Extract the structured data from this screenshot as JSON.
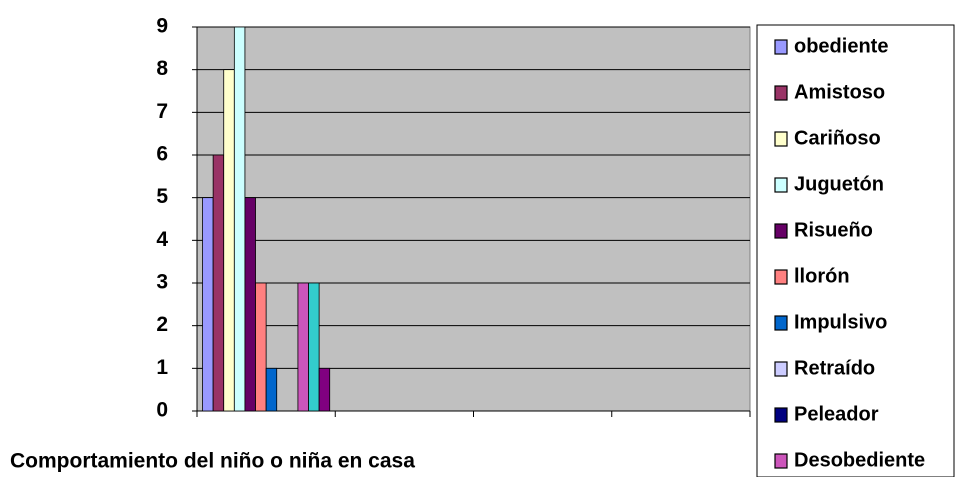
{
  "chart_data": {
    "type": "bar",
    "title": "Comportamiento del niño o niña en casa",
    "categories": [
      null,
      null,
      null,
      null
    ],
    "series": [
      {
        "name": "obediente",
        "color": "#9999ff",
        "values": [
          5,
          0,
          0,
          0
        ]
      },
      {
        "name": "Amistoso",
        "color": "#993366",
        "values": [
          6,
          0,
          0,
          0
        ]
      },
      {
        "name": "Cariñoso",
        "color": "#ffffcc",
        "values": [
          8,
          0,
          0,
          0
        ]
      },
      {
        "name": "Juguetón",
        "color": "#ccffff",
        "values": [
          9,
          0,
          0,
          0
        ]
      },
      {
        "name": "Risueño",
        "color": "#660066",
        "values": [
          5,
          0,
          0,
          0
        ]
      },
      {
        "name": "llorón",
        "color": "#ff8080",
        "values": [
          3,
          0,
          0,
          0
        ]
      },
      {
        "name": "Impulsivo",
        "color": "#0066cc",
        "values": [
          1,
          0,
          0,
          0
        ]
      },
      {
        "name": "Retraído",
        "color": "#ccccff",
        "values": [
          0,
          0,
          0,
          0
        ]
      },
      {
        "name": "Peleador",
        "color": "#000080",
        "values": [
          0,
          0,
          0,
          0
        ]
      },
      {
        "name": "Desobediente",
        "color": "#cc55bb",
        "values": [
          3,
          0,
          0,
          0
        ]
      },
      {
        "color": "#33cccc",
        "values": [
          3,
          0,
          0,
          0
        ]
      },
      {
        "color": "#800080",
        "values": [
          1,
          0,
          0,
          0
        ]
      }
    ],
    "ylim": [
      0,
      9
    ],
    "yticks": [
      0,
      1,
      2,
      3,
      4,
      5,
      6,
      7,
      8,
      9
    ],
    "grid": true
  }
}
